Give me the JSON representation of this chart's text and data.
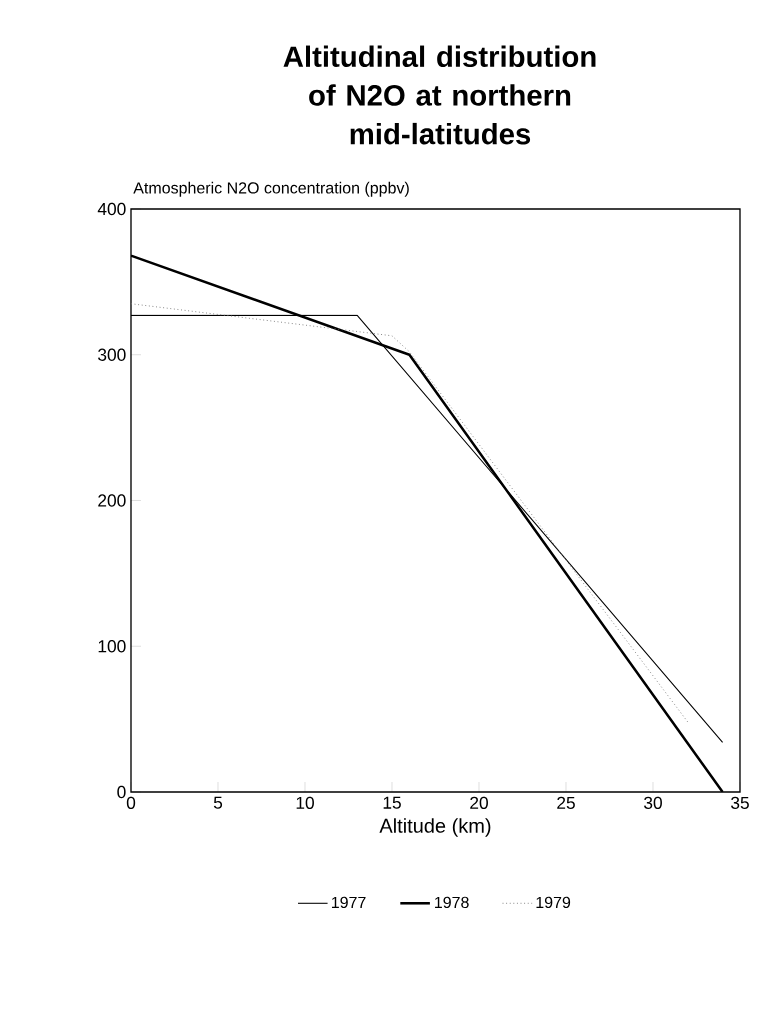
{
  "chart_data": {
    "type": "line",
    "title": "Altitudinal distribution of N2O at northern mid-latitudes",
    "ylabel": "Atmospheric N2O concentration (ppbv)",
    "xlabel": "Altitude (km)",
    "xlim": [
      0,
      35
    ],
    "xticks": [
      0,
      5,
      10,
      15,
      20,
      25,
      30,
      35
    ],
    "ylim": [
      0,
      400
    ],
    "yticks": [
      0,
      100,
      200,
      300,
      400
    ],
    "grid": false,
    "legend": "bottom",
    "marker": "none",
    "series": [
      {
        "name": "1977",
        "color": "#000000",
        "line_style": "solid",
        "x": [
          0,
          13,
          34
        ],
        "values": [
          327,
          327,
          34
        ]
      },
      {
        "name": "1978",
        "color": "#000000",
        "line_style": "solid",
        "x": [
          0,
          16,
          34
        ],
        "values": [
          368,
          300,
          0
        ]
      },
      {
        "name": "1979",
        "color": "#777777",
        "line_style": "dotted",
        "x": [
          0,
          15,
          16,
          32
        ],
        "values": [
          335,
          313,
          302,
          48
        ]
      }
    ]
  }
}
